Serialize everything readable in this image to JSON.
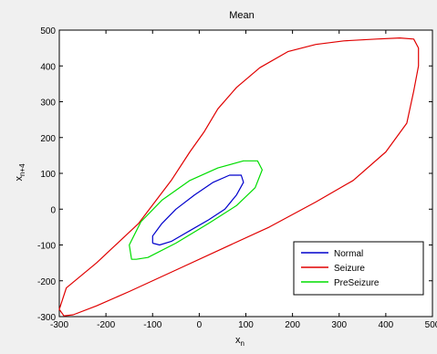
{
  "chart_data": {
    "type": "line",
    "title": "Mean",
    "xlabel": "x",
    "xlabel_sub": "n",
    "ylabel": "x",
    "ylabel_sub": "n+4",
    "xlim": [
      -300,
      500
    ],
    "ylim": [
      -300,
      500
    ],
    "xticks": [
      -300,
      -200,
      -100,
      0,
      100,
      200,
      300,
      400,
      500
    ],
    "yticks": [
      -300,
      -200,
      -100,
      0,
      100,
      200,
      300,
      400,
      500
    ],
    "grid": false,
    "legend_position": "lower-right",
    "series": [
      {
        "name": "Normal",
        "color": "#0000cc",
        "points": [
          [
            -100,
            -95
          ],
          [
            -85,
            -100
          ],
          [
            -60,
            -90
          ],
          [
            -20,
            -60
          ],
          [
            20,
            -30
          ],
          [
            55,
            0
          ],
          [
            80,
            40
          ],
          [
            95,
            75
          ],
          [
            90,
            95
          ],
          [
            65,
            95
          ],
          [
            30,
            75
          ],
          [
            -10,
            40
          ],
          [
            -50,
            0
          ],
          [
            -80,
            -40
          ],
          [
            -100,
            -75
          ],
          [
            -100,
            -95
          ]
        ]
      },
      {
        "name": "Seizure",
        "color": "#e00000",
        "points": [
          [
            -270,
            -295
          ],
          [
            -220,
            -270
          ],
          [
            -150,
            -230
          ],
          [
            -50,
            -170
          ],
          [
            50,
            -110
          ],
          [
            150,
            -50
          ],
          [
            250,
            20
          ],
          [
            330,
            80
          ],
          [
            400,
            160
          ],
          [
            445,
            240
          ],
          [
            460,
            330
          ],
          [
            470,
            400
          ],
          [
            470,
            450
          ],
          [
            460,
            475
          ],
          [
            430,
            478
          ],
          [
            380,
            475
          ],
          [
            310,
            470
          ],
          [
            250,
            460
          ],
          [
            190,
            440
          ],
          [
            130,
            395
          ],
          [
            80,
            340
          ],
          [
            40,
            280
          ],
          [
            10,
            215
          ],
          [
            -20,
            160
          ],
          [
            -60,
            80
          ],
          [
            -130,
            -40
          ],
          [
            -220,
            -150
          ],
          [
            -285,
            -220
          ],
          [
            -300,
            -280
          ],
          [
            -290,
            -298
          ],
          [
            -270,
            -295
          ]
        ]
      },
      {
        "name": "PreSeizure",
        "color": "#00dd00",
        "points": [
          [
            -135,
            -140
          ],
          [
            -110,
            -135
          ],
          [
            -50,
            -95
          ],
          [
            20,
            -40
          ],
          [
            80,
            10
          ],
          [
            120,
            60
          ],
          [
            135,
            110
          ],
          [
            125,
            135
          ],
          [
            95,
            135
          ],
          [
            40,
            115
          ],
          [
            -20,
            80
          ],
          [
            -80,
            25
          ],
          [
            -125,
            -35
          ],
          [
            -150,
            -100
          ],
          [
            -145,
            -140
          ],
          [
            -135,
            -140
          ]
        ]
      }
    ]
  }
}
